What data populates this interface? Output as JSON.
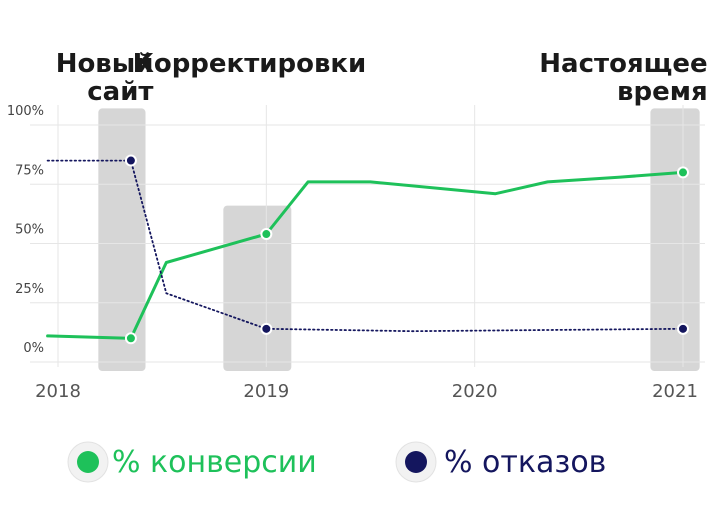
{
  "chart_data": {
    "type": "line",
    "x_range": [
      2018.0,
      2021.0
    ],
    "y_range": [
      0,
      100
    ],
    "y_ticks": [
      {
        "value": 0,
        "label": "0%"
      },
      {
        "value": 25,
        "label": "25%"
      },
      {
        "value": 50,
        "label": "50%"
      },
      {
        "value": 75,
        "label": "75%"
      },
      {
        "value": 100,
        "label": "100%"
      }
    ],
    "x_ticks": [
      {
        "value": 2018,
        "label": "2018"
      },
      {
        "value": 2019,
        "label": "2019"
      },
      {
        "value": 2020,
        "label": "2020"
      },
      {
        "value": 2021,
        "label": "2021"
      }
    ],
    "grid": true,
    "series": [
      {
        "name": "% конверсии",
        "color": "#1ec15a",
        "style": "solid",
        "points": [
          {
            "x": 2017.95,
            "y": 11
          },
          {
            "x": 2018.35,
            "y": 10
          },
          {
            "x": 2018.52,
            "y": 42
          },
          {
            "x": 2019.0,
            "y": 54
          },
          {
            "x": 2019.2,
            "y": 76
          },
          {
            "x": 2019.5,
            "y": 76
          },
          {
            "x": 2020.1,
            "y": 71
          },
          {
            "x": 2020.35,
            "y": 76
          },
          {
            "x": 2020.7,
            "y": 78
          },
          {
            "x": 2021.0,
            "y": 80
          }
        ],
        "markers": [
          1,
          3,
          9
        ]
      },
      {
        "name": "% отказов",
        "color": "#14165e",
        "style": "dotted",
        "points": [
          {
            "x": 2017.95,
            "y": 85
          },
          {
            "x": 2018.35,
            "y": 85
          },
          {
            "x": 2018.52,
            "y": 29
          },
          {
            "x": 2019.0,
            "y": 14
          },
          {
            "x": 2019.7,
            "y": 13
          },
          {
            "x": 2021.0,
            "y": 14
          }
        ],
        "markers": [
          1,
          3,
          5
        ]
      }
    ],
    "highlights": [
      {
        "x_from": 2018.28,
        "x_to": 2018.42,
        "y_from": 0,
        "y_to": 107,
        "label": [
          "Новый",
          "сайт"
        ],
        "align": "end",
        "label_x": 2018.42
      },
      {
        "x_from": 2018.88,
        "x_to": 2019.12,
        "y_from": 0,
        "y_to": 66,
        "label": [
          "Корректировки"
        ],
        "align": "start",
        "label_x": 2018.55
      },
      {
        "x_from": 2020.93,
        "x_to": 2021.08,
        "y_from": 0,
        "y_to": 107,
        "label": [
          "Настоящее",
          "время"
        ],
        "align": "end",
        "label_x": 2021.08
      }
    ],
    "legend": {
      "placement": "bottom",
      "items": [
        {
          "label": "% конверсии",
          "color": "#1ec15a"
        },
        {
          "label": "% отказов",
          "color": "#14165e"
        }
      ]
    }
  }
}
